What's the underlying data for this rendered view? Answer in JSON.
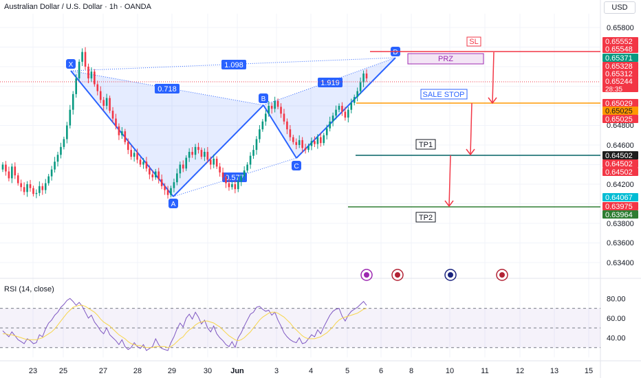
{
  "header": {
    "title": "Australian Dollar / U.S. Dollar · 1h · OANDA",
    "currency_button": "USD"
  },
  "rsi": {
    "title": "RSI (14, close)",
    "ticks": [
      "80.00",
      "60.00",
      "40.00"
    ]
  },
  "chart_data": {
    "type": "candlestick",
    "title": "Australian Dollar / U.S. Dollar · 1h · OANDA",
    "price_axis_ticks": [
      "0.65800",
      "0.64800",
      "0.64600",
      "0.64200",
      "0.63800",
      "0.63600",
      "0.63400"
    ],
    "x_tick_labels": [
      "23",
      "25",
      "27",
      "28",
      "29",
      "30",
      "Jun",
      "3",
      "4",
      "5",
      "6",
      "8",
      "10",
      "11",
      "12",
      "13",
      "15"
    ],
    "price_labels": [
      {
        "text": "0.65552",
        "color": "#f23645"
      },
      {
        "text": "0.65548",
        "color": "#f23645"
      },
      {
        "text": "0.65371",
        "color": "#089981"
      },
      {
        "text": "0.65328",
        "color": "#f23645"
      },
      {
        "text": "0.65312",
        "color": "#f23645"
      },
      {
        "text": "0.65244",
        "sub": "28:35",
        "color": "#f23645"
      },
      {
        "text": "0.65029",
        "color": "#f23645"
      },
      {
        "text": "0.65025",
        "color": "#ff9800",
        "dark": true
      },
      {
        "text": "0.65025",
        "color": "#f23645"
      },
      {
        "text": "0.64502",
        "color": "#1d1d1d"
      },
      {
        "text": "0.64502",
        "color": "#f23645"
      },
      {
        "text": "0.64502",
        "color": "#f23645"
      },
      {
        "text": "0.64067",
        "color": "#00bcd4"
      },
      {
        "text": "0.63975",
        "color": "#f23645"
      },
      {
        "text": "0.63964",
        "color": "#2e7d32"
      }
    ],
    "pattern_points": [
      {
        "label": "X",
        "price": 0.6555
      },
      {
        "label": "A",
        "price": 0.6409
      },
      {
        "label": "B",
        "price": 0.6505
      },
      {
        "label": "C",
        "price": 0.6455
      },
      {
        "label": "D",
        "price": 0.6556
      }
    ],
    "pattern_ratios": [
      "1.098",
      "0.718",
      "1.919",
      "0.577"
    ],
    "levels": [
      {
        "label": "SL",
        "price": 0.65548,
        "color": "#f23645"
      },
      {
        "label": "PRZ",
        "color": "#9c27b0"
      },
      {
        "label": "SALE STOP",
        "price": 0.65025,
        "color": "#ff9800"
      },
      {
        "label": "TP1",
        "price": 0.64502,
        "color": "#006064"
      },
      {
        "label": "TP2",
        "price": 0.63964,
        "color": "#2e7d32"
      }
    ],
    "rsi_ylim": [
      20,
      90
    ],
    "rsi_levels": [
      70,
      50,
      30
    ],
    "candle_series_close": [
      0.644,
      0.6433,
      0.6426,
      0.6438,
      0.6429,
      0.6421,
      0.6417,
      0.6412,
      0.642,
      0.6416,
      0.641,
      0.6411,
      0.6418,
      0.6414,
      0.6421,
      0.6428,
      0.6435,
      0.6443,
      0.645,
      0.6458,
      0.6466,
      0.648,
      0.6496,
      0.6512,
      0.6528,
      0.6545,
      0.6555,
      0.654,
      0.6528,
      0.6535,
      0.6522,
      0.6515,
      0.6506,
      0.65,
      0.6508,
      0.6495,
      0.6487,
      0.6479,
      0.647,
      0.6474,
      0.6463,
      0.6455,
      0.6448,
      0.6452,
      0.6445,
      0.644,
      0.6443,
      0.6436,
      0.643,
      0.6427,
      0.6433,
      0.6425,
      0.6418,
      0.6414,
      0.6409,
      0.6416,
      0.6422,
      0.6431,
      0.644,
      0.6436,
      0.6447,
      0.6453,
      0.645,
      0.6458,
      0.6455,
      0.6448,
      0.6453,
      0.6445,
      0.644,
      0.6446,
      0.6438,
      0.6432,
      0.6427,
      0.6421,
      0.6417,
      0.642,
      0.6415,
      0.6423,
      0.6428,
      0.6434,
      0.644,
      0.6449,
      0.6455,
      0.6466,
      0.6476,
      0.6484,
      0.6492,
      0.65,
      0.6497,
      0.6505,
      0.6499,
      0.6492,
      0.6484,
      0.6476,
      0.6468,
      0.6463,
      0.646,
      0.6465,
      0.6457,
      0.6455,
      0.6459,
      0.6464,
      0.6461,
      0.6468,
      0.6462,
      0.647,
      0.6477,
      0.6484,
      0.649,
      0.6496,
      0.65,
      0.6494,
      0.6488,
      0.6496,
      0.6503,
      0.6509,
      0.6515,
      0.6524,
      0.6533,
      0.6528
    ],
    "rsi_values": [
      47,
      44,
      41,
      46,
      42,
      38,
      36,
      34,
      39,
      37,
      34,
      35,
      43,
      41,
      49,
      55,
      58,
      63,
      66,
      71,
      74,
      78,
      80,
      77,
      73,
      76,
      72,
      66,
      60,
      63,
      56,
      52,
      47,
      44,
      50,
      43,
      40,
      37,
      33,
      38,
      31,
      28,
      30,
      35,
      31,
      29,
      33,
      27,
      29,
      31,
      39,
      33,
      29,
      28,
      27,
      35,
      41,
      49,
      55,
      51,
      60,
      64,
      59,
      66,
      61,
      54,
      58,
      50,
      46,
      52,
      44,
      40,
      37,
      33,
      31,
      36,
      30,
      40,
      45,
      52,
      58,
      64,
      66,
      71,
      72,
      69,
      67,
      68,
      63,
      66,
      58,
      52,
      45,
      41,
      38,
      36,
      35,
      40,
      34,
      35,
      39,
      43,
      41,
      48,
      44,
      51,
      57,
      63,
      67,
      69,
      70,
      62,
      57,
      63,
      67,
      69,
      71,
      74,
      77,
      73
    ],
    "rsi_ma_values": [
      44,
      44,
      43,
      43,
      42,
      41,
      40,
      39,
      38,
      38,
      38,
      38,
      39,
      40,
      42,
      44,
      46,
      49,
      53,
      57,
      61,
      65,
      68,
      71,
      72,
      73,
      73,
      72,
      70,
      68,
      66,
      63,
      59,
      56,
      54,
      52,
      49,
      46,
      43,
      41,
      39,
      36,
      34,
      33,
      32,
      32,
      31,
      30,
      30,
      30,
      31,
      31,
      31,
      31,
      30,
      31,
      33,
      36,
      39,
      41,
      45,
      48,
      50,
      53,
      55,
      56,
      57,
      57,
      56,
      55,
      53,
      51,
      48,
      45,
      42,
      40,
      38,
      37,
      38,
      40,
      43,
      46,
      50,
      54,
      58,
      61,
      63,
      65,
      66,
      66,
      65,
      63,
      61,
      58,
      55,
      51,
      48,
      45,
      42,
      40,
      39,
      39,
      39,
      40,
      41,
      43,
      45,
      48,
      51,
      55,
      58,
      60,
      61,
      62,
      63,
      64,
      65,
      67,
      69,
      70
    ]
  }
}
